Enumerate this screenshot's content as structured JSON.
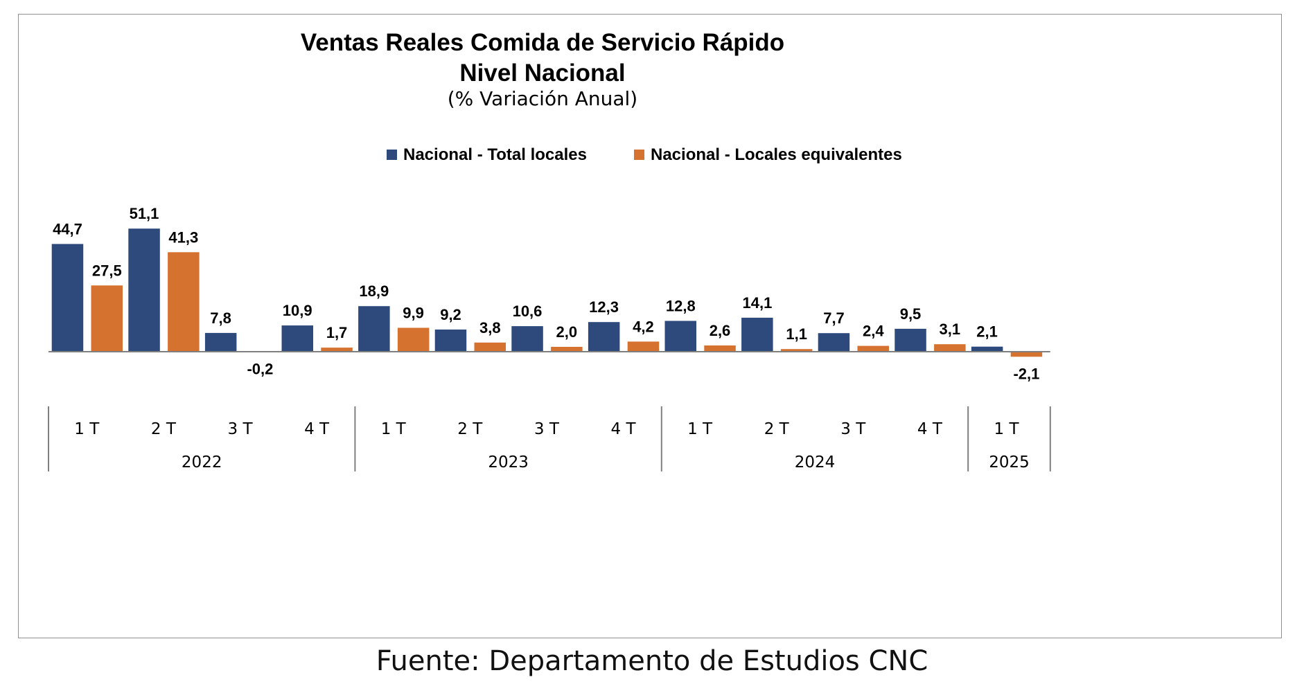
{
  "colors": {
    "series1": "#2E4A7D",
    "series2": "#D6722F",
    "axis": "#7f7f7f",
    "frame": "#8f8f8f"
  },
  "source": "Fuente: Departamento de Estudios CNC",
  "chart_data": {
    "type": "bar",
    "title": "Ventas Reales Comida de Servicio Rápido",
    "subtitle": "Nivel Nacional",
    "unit_note": "(% Variación Anual)",
    "legend_position": "top-center",
    "grid": false,
    "ylim": [
      -2.1,
      51.1
    ],
    "categories": [
      "1 T",
      "2 T",
      "3 T",
      "4 T",
      "1 T",
      "2 T",
      "3 T",
      "4 T",
      "1 T",
      "2 T",
      "3 T",
      "4 T",
      "1 T"
    ],
    "groups": [
      {
        "label": "2022",
        "count": 4
      },
      {
        "label": "2023",
        "count": 4
      },
      {
        "label": "2024",
        "count": 4
      },
      {
        "label": "2025",
        "count": 1
      }
    ],
    "series": [
      {
        "name": "Nacional - Total locales",
        "values": [
          44.7,
          51.1,
          7.8,
          10.9,
          18.9,
          9.2,
          10.6,
          12.3,
          12.8,
          14.1,
          7.7,
          9.5,
          2.1
        ],
        "labels": [
          "44,7",
          "51,1",
          "7,8",
          "10,9",
          "18,9",
          "9,2",
          "10,6",
          "12,3",
          "12,8",
          "14,1",
          "7,7",
          "9,5",
          "2,1"
        ]
      },
      {
        "name": "Nacional - Locales equivalentes",
        "values": [
          27.5,
          41.3,
          -0.2,
          1.7,
          9.9,
          3.8,
          2.0,
          4.2,
          2.6,
          1.1,
          2.4,
          3.1,
          -2.1
        ],
        "labels": [
          "27,5",
          "41,3",
          "-0,2",
          "1,7",
          "9,9",
          "3,8",
          "2,0",
          "4,2",
          "2,6",
          "1,1",
          "2,4",
          "3,1",
          "-2,1"
        ]
      }
    ]
  }
}
